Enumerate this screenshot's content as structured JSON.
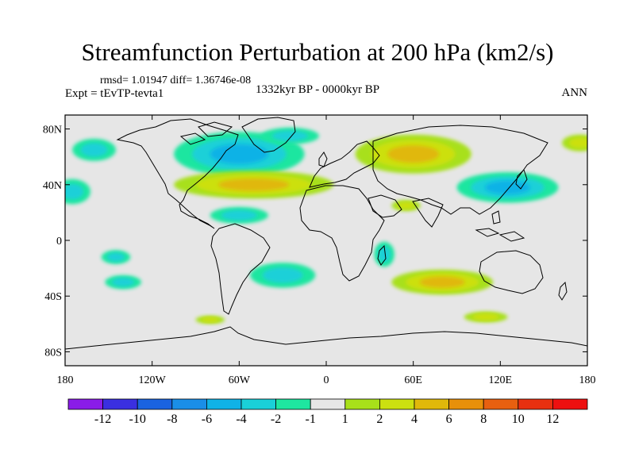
{
  "title": "Streamfunction Perturbation at 200 hPa (km2/s)",
  "stats": "rmsd= 1.01947 diff= 1.36746e-08",
  "experiment": "Expt = tEvTP-tevta1",
  "period": "1332kyr BP - 0000kyr BP",
  "season": "ANN",
  "axes": {
    "lat_labels": [
      "80N",
      "40N",
      "0",
      "40S",
      "80S"
    ],
    "lon_labels": [
      "180",
      "120W",
      "60W",
      "0",
      "60E",
      "120E",
      "180"
    ]
  },
  "colorbar": {
    "labels": [
      "-12",
      "-10",
      "-8",
      "-6",
      "-4",
      "-2",
      "-1",
      "1",
      "2",
      "4",
      "6",
      "8",
      "10",
      "12"
    ],
    "colors": [
      "#8a1ce8",
      "#3a2fe0",
      "#1a63e0",
      "#1a8ee8",
      "#10b2e6",
      "#1ad0d8",
      "#1ee6a0",
      "#e6e6e6",
      "#a8e01a",
      "#cce010",
      "#e0b80a",
      "#e8900a",
      "#e86010",
      "#e83010",
      "#ee1010"
    ]
  },
  "chart_data": {
    "type": "map",
    "title": "Streamfunction Perturbation at 200 hPa (km2/s)",
    "variable": "streamfunction perturbation",
    "level": "200 hPa",
    "units": "km2/s",
    "lon_range": [
      -180,
      180
    ],
    "lat_range": [
      -90,
      90
    ],
    "contour_levels": [
      -12,
      -10,
      -8,
      -6,
      -4,
      -2,
      -1,
      1,
      2,
      4,
      6,
      8,
      10,
      12
    ],
    "anomalies": [
      {
        "name": "north-atlantic-low",
        "lon": -60,
        "lat": 62,
        "lon_span": 90,
        "lat_span": 32,
        "value": -4
      },
      {
        "name": "arctic-canada-low",
        "lon": -25,
        "lat": 75,
        "lon_span": 40,
        "lat_span": 12,
        "value": -2
      },
      {
        "name": "north-pacific-low",
        "lon": -160,
        "lat": 65,
        "lon_span": 30,
        "lat_span": 16,
        "value": -2
      },
      {
        "name": "atlantic-ridge",
        "lon": -50,
        "lat": 40,
        "lon_span": 110,
        "lat_span": 20,
        "value": 4
      },
      {
        "name": "eurasia-ridge",
        "lon": 60,
        "lat": 62,
        "lon_span": 80,
        "lat_span": 28,
        "value": 4
      },
      {
        "name": "east-asia-low",
        "lon": 125,
        "lat": 38,
        "lon_span": 70,
        "lat_span": 22,
        "value": -4
      },
      {
        "name": "east-pacific-low",
        "lon": -175,
        "lat": 35,
        "lon_span": 25,
        "lat_span": 18,
        "value": -2
      },
      {
        "name": "arabia-ridge",
        "lon": 55,
        "lat": 25,
        "lon_span": 20,
        "lat_span": 8,
        "value": 2
      },
      {
        "name": "caribbean-low",
        "lon": -60,
        "lat": 18,
        "lon_span": 40,
        "lat_span": 12,
        "value": -2
      },
      {
        "name": "africa-low",
        "lon": 40,
        "lat": -10,
        "lon_span": 14,
        "lat_span": 18,
        "value": -2
      },
      {
        "name": "south-pacific-low",
        "lon": -145,
        "lat": -12,
        "lon_span": 20,
        "lat_span": 10,
        "value": -2
      },
      {
        "name": "south-america-low",
        "lon": -30,
        "lat": -25,
        "lon_span": 45,
        "lat_span": 18,
        "value": -2
      },
      {
        "name": "southeast-pacific-low",
        "lon": -140,
        "lat": -30,
        "lon_span": 25,
        "lat_span": 10,
        "value": -2
      },
      {
        "name": "indian-ocean-ridge",
        "lon": 80,
        "lat": -30,
        "lon_span": 70,
        "lat_span": 18,
        "value": 4
      },
      {
        "name": "australia-south-ridge",
        "lon": 110,
        "lat": -55,
        "lon_span": 30,
        "lat_span": 8,
        "value": 2
      },
      {
        "name": "drake-passage-ridge",
        "lon": -80,
        "lat": -57,
        "lon_span": 20,
        "lat_span": 6,
        "value": 2
      },
      {
        "name": "pacific-east-ridge",
        "lon": 175,
        "lat": 70,
        "lon_span": 25,
        "lat_span": 12,
        "value": 2
      }
    ]
  }
}
